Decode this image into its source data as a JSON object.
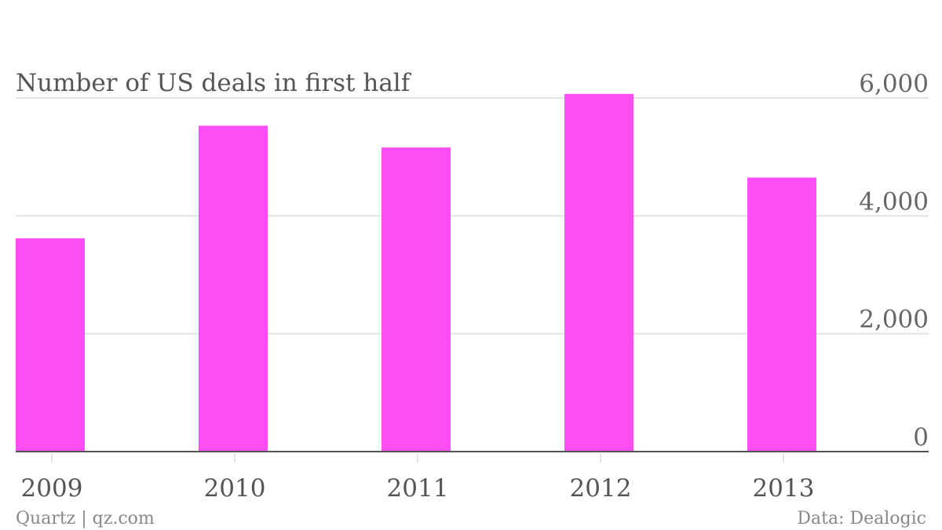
{
  "chart_data": {
    "type": "bar",
    "title": "Number of US deals in first half",
    "categories": [
      "2009",
      "2010",
      "2011",
      "2012",
      "2013"
    ],
    "values": [
      3620,
      5530,
      5160,
      6070,
      4650
    ],
    "ylim": [
      0,
      6000
    ],
    "yticks": [
      0,
      2000,
      4000,
      6000
    ],
    "ytick_labels": [
      "0",
      "2,000",
      "4,000",
      "6,000"
    ],
    "xlabel": "",
    "ylabel": "",
    "grid": true,
    "yaxis_position": "right",
    "colors": {
      "bar": "#ff4ef6"
    }
  },
  "footer": {
    "source_left": "Quartz | qz.com",
    "source_right": "Data: Dealogic"
  }
}
